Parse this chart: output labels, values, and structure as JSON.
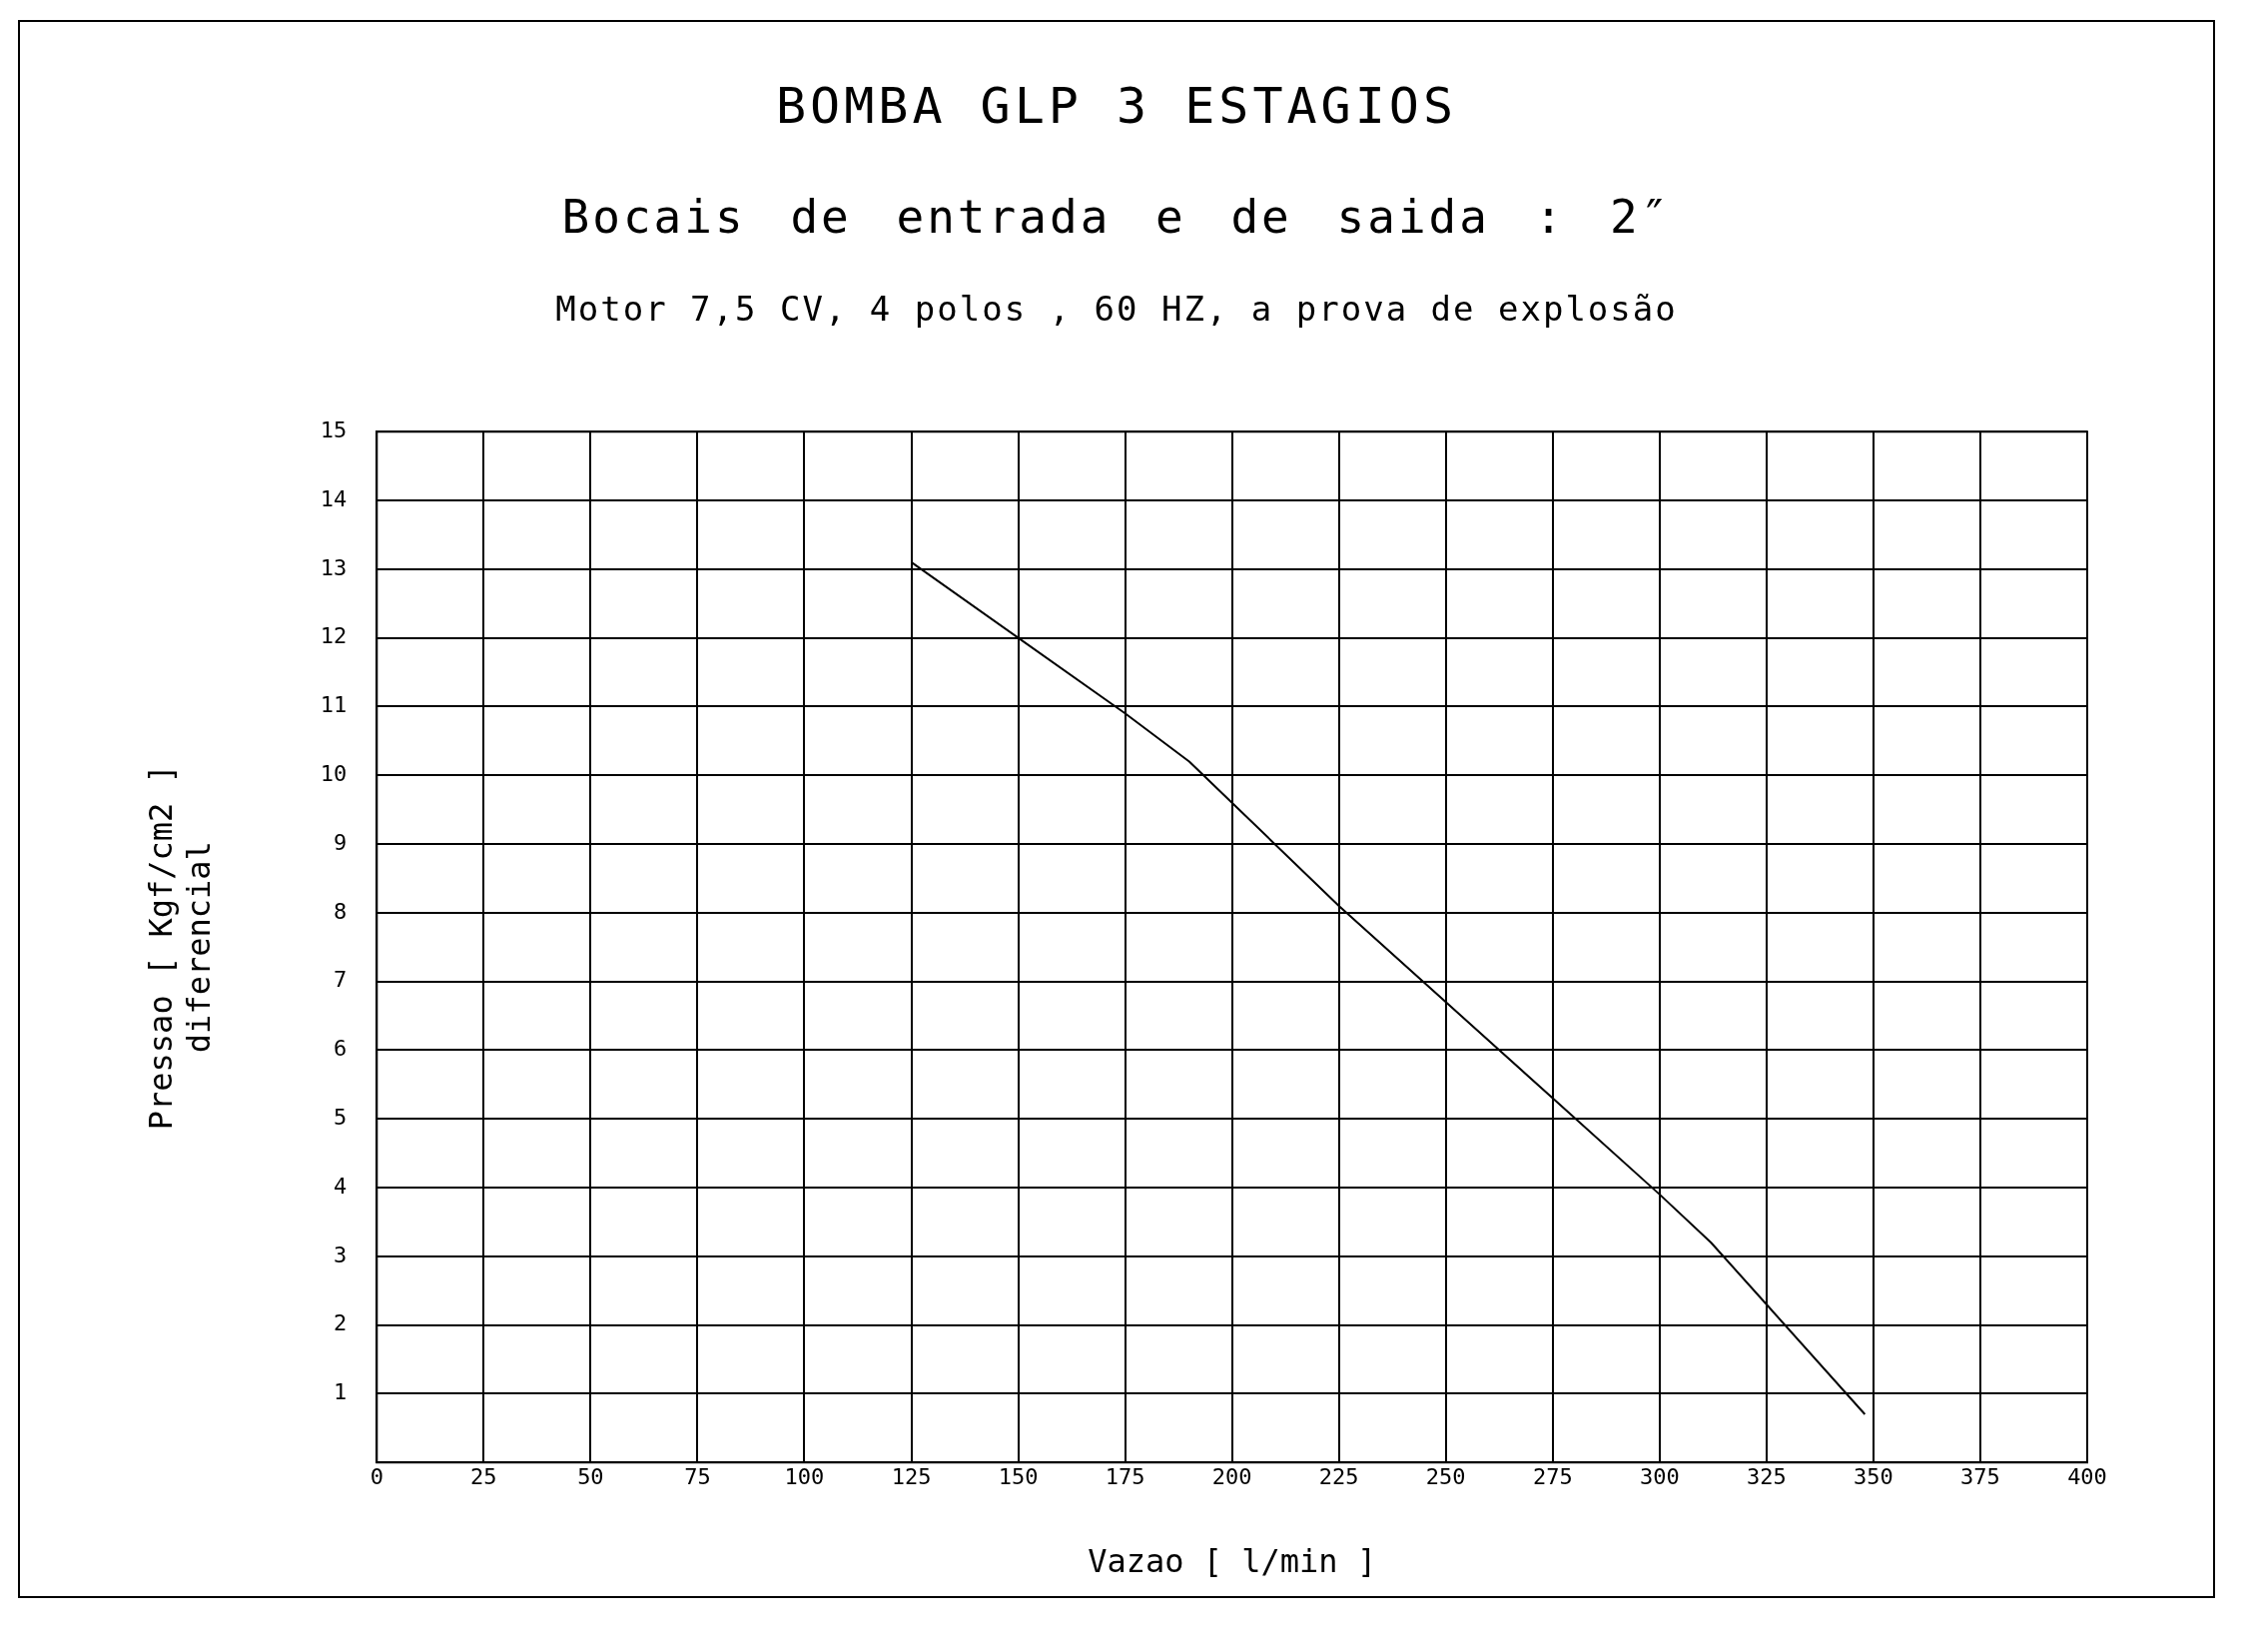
{
  "chart_data": {
    "type": "line",
    "title": "BOMBA GLP 3 ESTAGIOS",
    "subtitle": "Bocais de entrada e de saida :  2″",
    "annotations": [
      "Motor  7,5 CV, 4 polos ,  60 HZ, a prova de explosão"
    ],
    "xlabel": "Vazao [ l/min ]",
    "ylabel": [
      "Pressao [ Kgf/cm2 ]",
      "diferencial"
    ],
    "series": [
      {
        "color": "#000000",
        "x": [
          125,
          150,
          175,
          190,
          200,
          225,
          250,
          275,
          300,
          312,
          325,
          348
        ],
        "values": [
          13.1,
          12,
          10.9,
          10.2,
          9.6,
          8.1,
          6.7,
          5.3,
          3.9,
          3.2,
          2.3,
          0.7
        ]
      }
    ],
    "xlim": [
      0,
      400
    ],
    "xticks": [
      0,
      25,
      50,
      75,
      100,
      125,
      150,
      175,
      200,
      225,
      250,
      275,
      300,
      325,
      350,
      375,
      400
    ],
    "ylim": [
      0,
      15
    ],
    "yticks": [
      1,
      2,
      3,
      4,
      5,
      6,
      7,
      8,
      9,
      10,
      11,
      12,
      13,
      14,
      15
    ],
    "grid": true,
    "legend": false,
    "marker": "none",
    "line_style": "solid"
  }
}
